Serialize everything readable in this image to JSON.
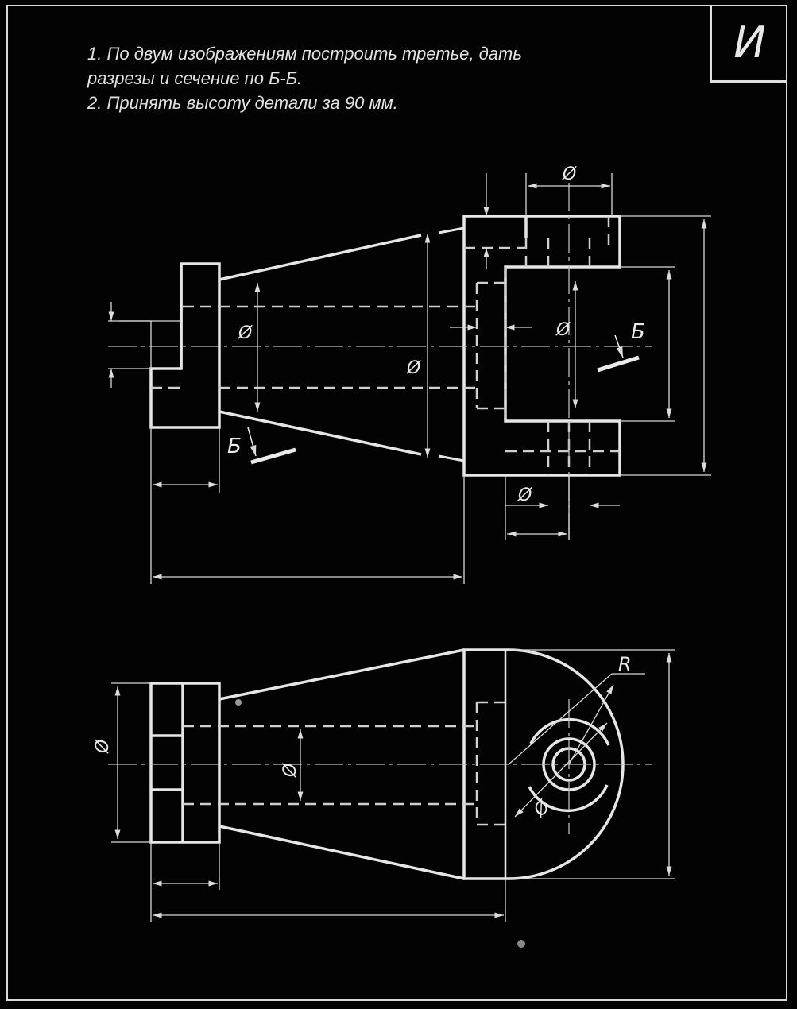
{
  "variant_letter": "И",
  "task": {
    "line1": "1. По двум изображениям построить третье, дать",
    "line2": "разрезы и сечение по Б-Б.",
    "line3": "2. Принять высоту детали за 90 мм."
  },
  "labels": {
    "diameter": "Ø",
    "section": "Б",
    "radius": "R"
  },
  "colors": {
    "background": "#030303",
    "line": "#e6e6e6"
  }
}
